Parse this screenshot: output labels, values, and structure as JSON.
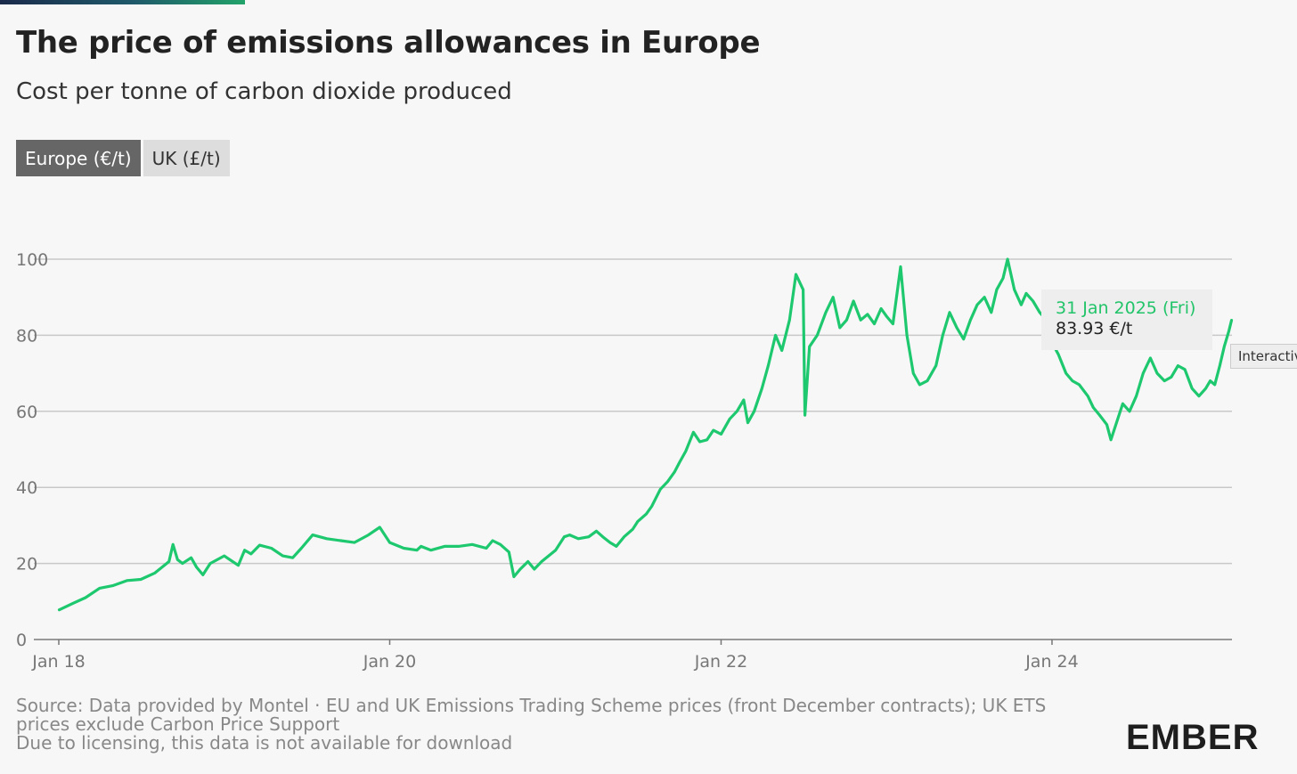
{
  "header": {
    "title": "The price of emissions allowances in Europe",
    "subtitle": "Cost per tonne of carbon dioxide produced"
  },
  "tabs": [
    {
      "label": "Europe (€/t)",
      "active": true
    },
    {
      "label": "UK (£/t)",
      "active": false
    }
  ],
  "tooltip": {
    "date": "31 Jan 2025 (Fri)",
    "value": "83.93 €/t"
  },
  "interactive_badge": "Interactive",
  "footer": {
    "source": "Source: Data provided by Montel · EU and UK Emissions Trading Scheme prices (front December contracts); UK ETS prices exclude Carbon Price Support",
    "licensing": "Due to licensing, this data is not available for download",
    "logo": "EMBER"
  },
  "colors": {
    "series": "#1ec86e",
    "grid": "#c8c8c8",
    "axis_text": "#777777",
    "tab_active": "#666666",
    "tab_inactive": "#dddddd"
  },
  "chart_data": {
    "type": "line",
    "title": "The price of emissions allowances in Europe",
    "subtitle": "Cost per tonne of carbon dioxide produced",
    "xlabel": "",
    "ylabel": "",
    "xlim": [
      "2018-01-01",
      "2025-02-01"
    ],
    "ylim": [
      0,
      100
    ],
    "x_ticks": [
      "2018-01-01",
      "2020-01-01",
      "2022-01-01",
      "2024-01-01"
    ],
    "x_tick_labels": [
      "Jan 18",
      "Jan 20",
      "Jan 22",
      "Jan 24"
    ],
    "y_ticks": [
      0,
      20,
      40,
      60,
      80,
      100
    ],
    "grid": true,
    "series": [
      {
        "name": "",
        "color": "#1ec86e",
        "points": [
          [
            "2018-01-02",
            7.8
          ],
          [
            "2018-02-01",
            9.5
          ],
          [
            "2018-03-01",
            11.0
          ],
          [
            "2018-04-01",
            13.5
          ],
          [
            "2018-05-01",
            14.2
          ],
          [
            "2018-06-01",
            15.5
          ],
          [
            "2018-07-01",
            15.8
          ],
          [
            "2018-08-01",
            17.5
          ],
          [
            "2018-09-01",
            20.5
          ],
          [
            "2018-09-10",
            25.0
          ],
          [
            "2018-09-20",
            21.0
          ],
          [
            "2018-10-01",
            20.0
          ],
          [
            "2018-10-20",
            21.5
          ],
          [
            "2018-11-01",
            19.0
          ],
          [
            "2018-11-15",
            17.0
          ],
          [
            "2018-12-01",
            20.0
          ],
          [
            "2019-01-01",
            22.0
          ],
          [
            "2019-02-01",
            19.5
          ],
          [
            "2019-02-15",
            23.5
          ],
          [
            "2019-03-01",
            22.5
          ],
          [
            "2019-03-20",
            24.8
          ],
          [
            "2019-04-15",
            24.0
          ],
          [
            "2019-05-10",
            22.0
          ],
          [
            "2019-06-01",
            21.5
          ],
          [
            "2019-06-20",
            24.0
          ],
          [
            "2019-07-15",
            27.5
          ],
          [
            "2019-08-15",
            26.5
          ],
          [
            "2019-09-15",
            26.0
          ],
          [
            "2019-10-15",
            25.5
          ],
          [
            "2019-11-15",
            27.5
          ],
          [
            "2019-12-10",
            29.5
          ],
          [
            "2020-01-01",
            25.5
          ],
          [
            "2020-02-01",
            24.0
          ],
          [
            "2020-03-01",
            23.5
          ],
          [
            "2020-03-10",
            24.5
          ],
          [
            "2020-04-01",
            23.5
          ],
          [
            "2020-05-01",
            24.5
          ],
          [
            "2020-06-01",
            24.5
          ],
          [
            "2020-07-01",
            25.0
          ],
          [
            "2020-08-01",
            24.0
          ],
          [
            "2020-08-15",
            26.0
          ],
          [
            "2020-09-01",
            25.0
          ],
          [
            "2020-09-20",
            23.0
          ],
          [
            "2020-10-01",
            16.5
          ],
          [
            "2020-10-15",
            18.5
          ],
          [
            "2020-11-01",
            20.5
          ],
          [
            "2020-11-15",
            18.5
          ],
          [
            "2020-12-01",
            20.5
          ],
          [
            "2021-01-01",
            23.5
          ],
          [
            "2021-01-20",
            27.0
          ],
          [
            "2021-02-01",
            27.5
          ],
          [
            "2021-02-20",
            26.5
          ],
          [
            "2021-03-15",
            27.0
          ],
          [
            "2021-04-01",
            28.5
          ],
          [
            "2021-04-15",
            27.0
          ],
          [
            "2021-05-01",
            25.5
          ],
          [
            "2021-05-15",
            24.5
          ],
          [
            "2021-06-01",
            27.0
          ],
          [
            "2021-06-20",
            29.0
          ],
          [
            "2021-07-01",
            31.0
          ],
          [
            "2021-07-20",
            33.0
          ],
          [
            "2021-08-01",
            35.0
          ],
          [
            "2021-08-20",
            39.5
          ],
          [
            "2021-09-05",
            41.5
          ],
          [
            "2021-09-20",
            44.0
          ],
          [
            "2021-10-01",
            46.5
          ],
          [
            "2021-10-15",
            49.5
          ],
          [
            "2021-11-01",
            54.5
          ],
          [
            "2021-11-15",
            52.0
          ],
          [
            "2021-12-01",
            52.5
          ],
          [
            "2021-12-15",
            55.0
          ],
          [
            "2022-01-01",
            54.0
          ],
          [
            "2022-01-20",
            58.0
          ],
          [
            "2022-02-05",
            60.0
          ],
          [
            "2022-02-20",
            63.0
          ],
          [
            "2022-03-01",
            57.0
          ],
          [
            "2022-03-15",
            60.0
          ],
          [
            "2022-04-01",
            66.0
          ],
          [
            "2022-04-15",
            72.0
          ],
          [
            "2022-05-01",
            80.0
          ],
          [
            "2022-05-15",
            76.0
          ],
          [
            "2022-06-01",
            84.0
          ],
          [
            "2022-06-15",
            96.0
          ],
          [
            "2022-07-01",
            92.0
          ],
          [
            "2022-07-05",
            59.0
          ],
          [
            "2022-07-15",
            77.0
          ],
          [
            "2022-08-01",
            80.0
          ],
          [
            "2022-08-20",
            86.0
          ],
          [
            "2022-09-05",
            90.0
          ],
          [
            "2022-09-20",
            82.0
          ],
          [
            "2022-10-05",
            84.0
          ],
          [
            "2022-10-20",
            89.0
          ],
          [
            "2022-11-05",
            84.0
          ],
          [
            "2022-11-20",
            85.5
          ],
          [
            "2022-12-05",
            83.0
          ],
          [
            "2022-12-20",
            87.0
          ],
          [
            "2023-01-01",
            85.0
          ],
          [
            "2023-01-15",
            83.0
          ],
          [
            "2023-02-01",
            98.0
          ],
          [
            "2023-02-15",
            80.0
          ],
          [
            "2023-03-01",
            70.0
          ],
          [
            "2023-03-15",
            67.0
          ],
          [
            "2023-04-01",
            68.0
          ],
          [
            "2023-04-20",
            72.0
          ],
          [
            "2023-05-05",
            80.0
          ],
          [
            "2023-05-20",
            86.0
          ],
          [
            "2023-06-05",
            82.0
          ],
          [
            "2023-06-20",
            79.0
          ],
          [
            "2023-07-05",
            84.0
          ],
          [
            "2023-07-20",
            88.0
          ],
          [
            "2023-08-05",
            90.0
          ],
          [
            "2023-08-20",
            86.0
          ],
          [
            "2023-09-01",
            92.0
          ],
          [
            "2023-09-15",
            95.0
          ],
          [
            "2023-09-25",
            100.0
          ],
          [
            "2023-10-10",
            92.0
          ],
          [
            "2023-10-25",
            88.0
          ],
          [
            "2023-11-05",
            91.0
          ],
          [
            "2023-11-20",
            89.0
          ],
          [
            "2023-12-05",
            86.0
          ],
          [
            "2023-12-20",
            84.0
          ],
          [
            "2024-01-01",
            78.0
          ],
          [
            "2024-01-15",
            75.0
          ],
          [
            "2024-02-01",
            70.0
          ],
          [
            "2024-02-15",
            68.0
          ],
          [
            "2024-03-01",
            67.0
          ],
          [
            "2024-03-20",
            64.0
          ],
          [
            "2024-04-01",
            61.0
          ],
          [
            "2024-04-15",
            59.0
          ],
          [
            "2024-05-01",
            56.5
          ],
          [
            "2024-05-10",
            52.5
          ],
          [
            "2024-05-25",
            58.0
          ],
          [
            "2024-06-05",
            62.0
          ],
          [
            "2024-06-20",
            60.0
          ],
          [
            "2024-07-05",
            64.0
          ],
          [
            "2024-07-20",
            70.0
          ],
          [
            "2024-08-05",
            74.0
          ],
          [
            "2024-08-20",
            70.0
          ],
          [
            "2024-09-05",
            68.0
          ],
          [
            "2024-09-20",
            69.0
          ],
          [
            "2024-10-05",
            72.0
          ],
          [
            "2024-10-20",
            71.0
          ],
          [
            "2024-11-05",
            66.0
          ],
          [
            "2024-11-20",
            64.0
          ],
          [
            "2024-12-05",
            66.0
          ],
          [
            "2024-12-15",
            68.0
          ],
          [
            "2024-12-25",
            67.0
          ],
          [
            "2025-01-05",
            72.0
          ],
          [
            "2025-01-15",
            77.0
          ],
          [
            "2025-01-25",
            81.0
          ],
          [
            "2025-01-31",
            83.93
          ]
        ]
      }
    ],
    "tooltip_point": {
      "x": "2025-01-31",
      "y": 83.93
    }
  }
}
